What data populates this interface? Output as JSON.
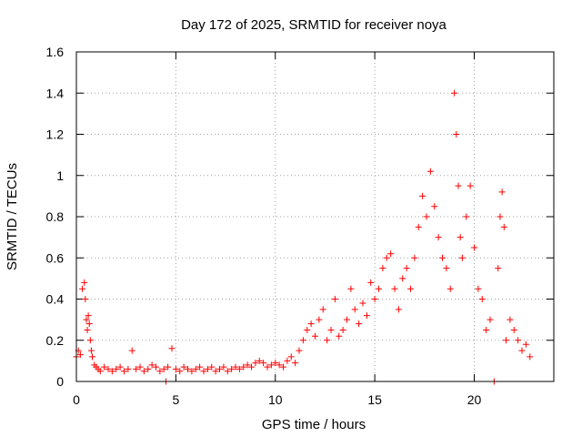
{
  "chart_data": {
    "type": "scatter",
    "title": "Day 172 of 2025, SRMTID for receiver noya",
    "xlabel": "GPS time / hours",
    "ylabel": "SRMTID / TECUs",
    "xlim": [
      0,
      24
    ],
    "ylim": [
      0,
      1.6
    ],
    "xticks": [
      0,
      5,
      10,
      15,
      20
    ],
    "xtick_labels": [
      "0",
      "5",
      "10",
      "15",
      "20"
    ],
    "yticks": [
      0,
      0.2,
      0.4,
      0.6,
      0.8,
      1.0,
      1.2,
      1.4,
      1.6
    ],
    "ytick_labels": [
      "0",
      "0.2",
      "0.4",
      "0.6",
      "0.8",
      "1",
      "1.2",
      "1.4",
      "1.6"
    ],
    "grid": true,
    "marker": "+",
    "marker_color": "#ff0000",
    "series": [
      {
        "name": "SRMTID",
        "x": [
          0.0,
          0.1,
          0.2,
          0.3,
          0.4,
          0.45,
          0.5,
          0.55,
          0.6,
          0.65,
          0.7,
          0.75,
          0.8,
          0.9,
          1.0,
          1.1,
          1.2,
          1.4,
          1.6,
          1.8,
          2.0,
          2.2,
          2.4,
          2.6,
          2.8,
          3.0,
          3.2,
          3.4,
          3.6,
          3.8,
          4.0,
          4.2,
          4.4,
          4.5,
          4.6,
          4.8,
          5.0,
          5.2,
          5.4,
          5.6,
          5.8,
          6.0,
          6.2,
          6.4,
          6.6,
          6.8,
          7.0,
          7.2,
          7.4,
          7.6,
          7.8,
          8.0,
          8.2,
          8.4,
          8.6,
          8.8,
          9.0,
          9.2,
          9.4,
          9.6,
          9.8,
          10.0,
          10.2,
          10.4,
          10.6,
          10.8,
          11.0,
          11.2,
          11.4,
          11.6,
          11.8,
          12.0,
          12.2,
          12.4,
          12.6,
          12.8,
          13.0,
          13.2,
          13.4,
          13.6,
          13.8,
          14.0,
          14.2,
          14.4,
          14.6,
          14.8,
          15.0,
          15.2,
          15.4,
          15.6,
          15.8,
          16.0,
          16.2,
          16.4,
          16.6,
          16.8,
          17.0,
          17.2,
          17.4,
          17.6,
          17.8,
          18.0,
          18.2,
          18.4,
          18.6,
          18.8,
          19.0,
          19.1,
          19.2,
          19.3,
          19.4,
          19.6,
          19.8,
          20.0,
          20.2,
          20.4,
          20.6,
          20.8,
          21.0,
          21.2,
          21.3,
          21.4,
          21.5,
          21.6,
          21.8,
          22.0,
          22.2,
          22.4,
          22.6,
          22.8
        ],
        "y": [
          0.12,
          0.15,
          0.13,
          0.45,
          0.48,
          0.4,
          0.3,
          0.25,
          0.32,
          0.28,
          0.2,
          0.15,
          0.12,
          0.08,
          0.07,
          0.06,
          0.05,
          0.07,
          0.06,
          0.05,
          0.06,
          0.07,
          0.05,
          0.06,
          0.15,
          0.06,
          0.07,
          0.05,
          0.06,
          0.08,
          0.07,
          0.05,
          0.06,
          0.0,
          0.07,
          0.16,
          0.06,
          0.05,
          0.07,
          0.06,
          0.05,
          0.06,
          0.07,
          0.05,
          0.06,
          0.07,
          0.05,
          0.06,
          0.07,
          0.05,
          0.06,
          0.07,
          0.06,
          0.07,
          0.08,
          0.07,
          0.09,
          0.1,
          0.09,
          0.07,
          0.08,
          0.09,
          0.08,
          0.07,
          0.1,
          0.12,
          0.09,
          0.15,
          0.2,
          0.25,
          0.28,
          0.22,
          0.3,
          0.35,
          0.2,
          0.25,
          0.4,
          0.22,
          0.25,
          0.3,
          0.45,
          0.35,
          0.28,
          0.38,
          0.32,
          0.48,
          0.4,
          0.45,
          0.55,
          0.6,
          0.62,
          0.45,
          0.35,
          0.5,
          0.55,
          0.45,
          0.6,
          0.75,
          0.9,
          0.8,
          1.02,
          0.85,
          0.7,
          0.6,
          0.55,
          0.45,
          1.4,
          1.2,
          0.95,
          0.7,
          0.6,
          0.8,
          0.95,
          0.65,
          0.45,
          0.4,
          0.25,
          0.3,
          0.0,
          0.55,
          0.8,
          0.92,
          0.75,
          0.2,
          0.3,
          0.25,
          0.2,
          0.15,
          0.18,
          0.12
        ]
      }
    ]
  }
}
